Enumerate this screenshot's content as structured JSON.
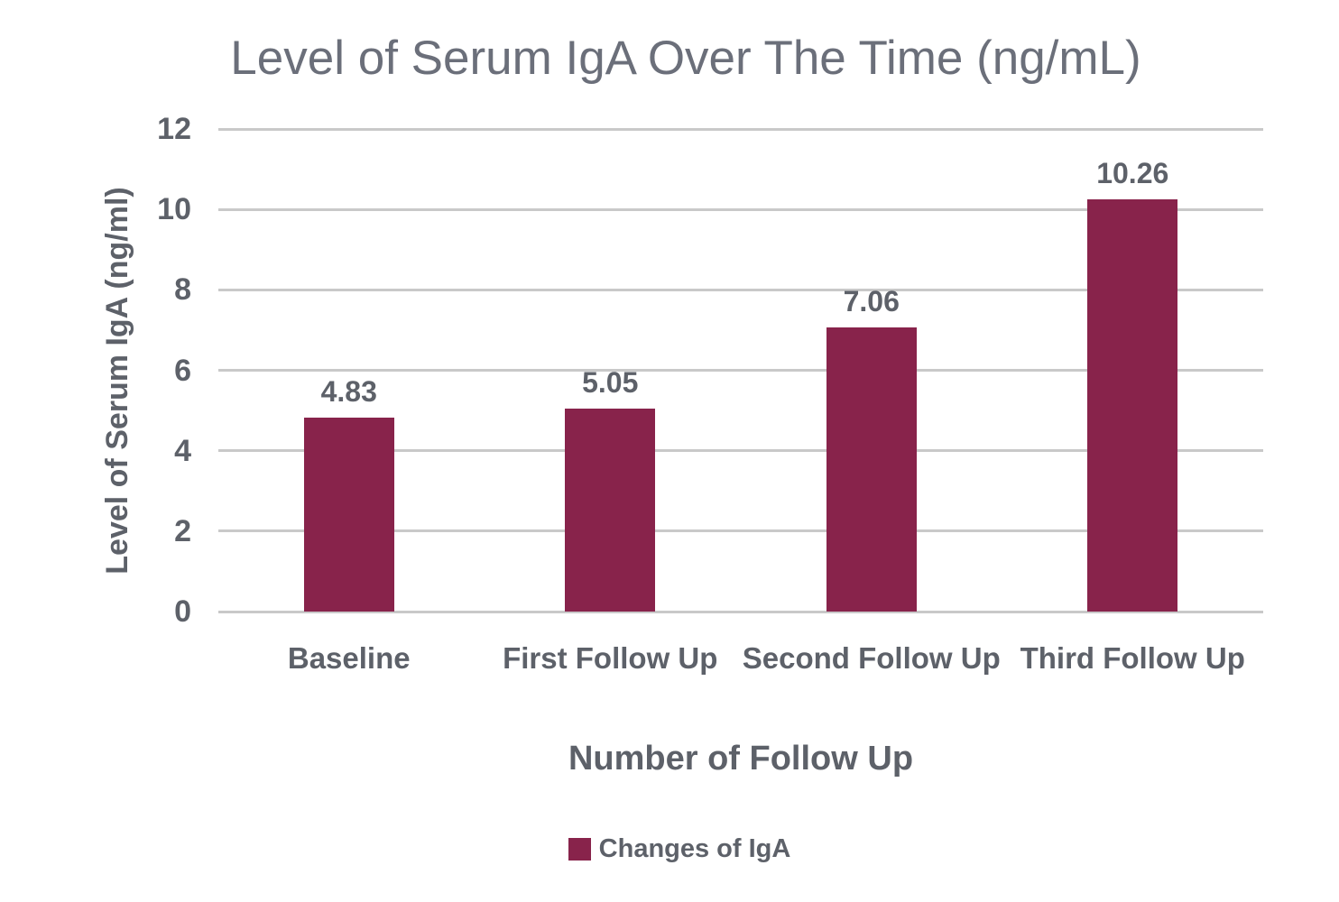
{
  "chart_data": {
    "type": "bar",
    "title": "Level of Serum IgA Over The Time (ng/mL)",
    "xlabel": "Number of Follow Up",
    "ylabel": "Level of Serum IgA (ng/ml)",
    "categories": [
      "Baseline",
      "First Follow Up",
      "Second Follow Up",
      "Third Follow Up"
    ],
    "series": [
      {
        "name": "Changes of IgA",
        "values": [
          4.83,
          5.05,
          7.06,
          10.26
        ]
      }
    ],
    "value_labels": [
      "4.83",
      "5.05",
      "7.06",
      "10.26"
    ],
    "ylim": [
      0,
      12
    ],
    "yticks": [
      0,
      2,
      4,
      6,
      8,
      10,
      12
    ],
    "grid": "horizontal",
    "legend_position": "bottom",
    "colors": {
      "bar": "#88234B",
      "title_text": "#6B6F7A",
      "label_text": "#5D6169",
      "gridline": "#C9C9C9",
      "background": "#FFFFFF"
    }
  },
  "legend": {
    "label": "Changes of IgA",
    "swatch_color": "#88234B"
  }
}
